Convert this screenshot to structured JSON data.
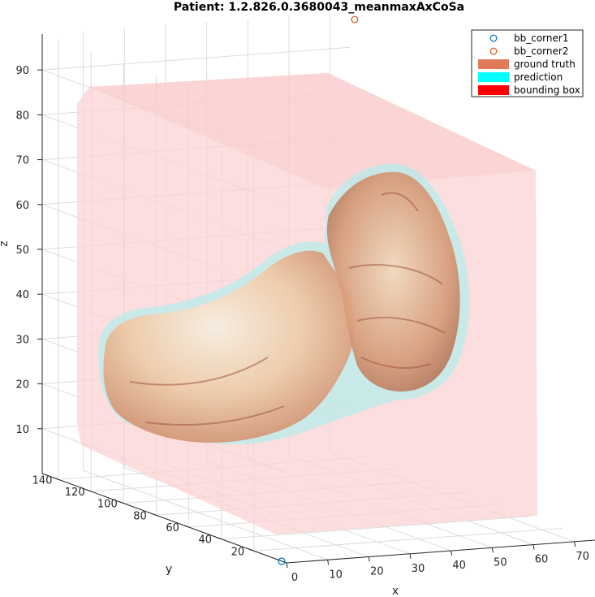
{
  "chart_data": {
    "type": "surface3d",
    "title": "Patient: 1.2.826.0.3680043_meanmaxAxCoSa",
    "xlabel": "x",
    "ylabel": "y",
    "zlabel": "z",
    "xticks": [
      "0",
      "10",
      "20",
      "30",
      "40",
      "50",
      "60",
      "70"
    ],
    "yticks": [
      "20",
      "40",
      "60",
      "80",
      "100",
      "120",
      "140"
    ],
    "zticks": [
      "10",
      "20",
      "30",
      "40",
      "50",
      "60",
      "70",
      "80",
      "90"
    ],
    "xlim": [
      0,
      75
    ],
    "ylim": [
      0,
      150
    ],
    "zlim": [
      0,
      98
    ],
    "grid": true,
    "legend_position": "top-right",
    "legend": [
      {
        "label": "bb_corner1",
        "kind": "marker",
        "color": "#0072BD"
      },
      {
        "label": "bb_corner2",
        "kind": "marker",
        "color": "#D95319"
      },
      {
        "label": "ground truth",
        "kind": "patch",
        "color": "#E07B5A"
      },
      {
        "label": "prediction",
        "kind": "patch",
        "color": "#00FFFF"
      },
      {
        "label": "bounding box",
        "kind": "patch",
        "color": "#FF0000"
      }
    ],
    "markers": [
      {
        "name": "bb_corner1",
        "x": 0,
        "y": 0,
        "z": 0,
        "color": "#0072BD"
      },
      {
        "name": "bb_corner2",
        "x": 65,
        "y": 140,
        "z": 95,
        "color": "#D95319"
      }
    ]
  }
}
